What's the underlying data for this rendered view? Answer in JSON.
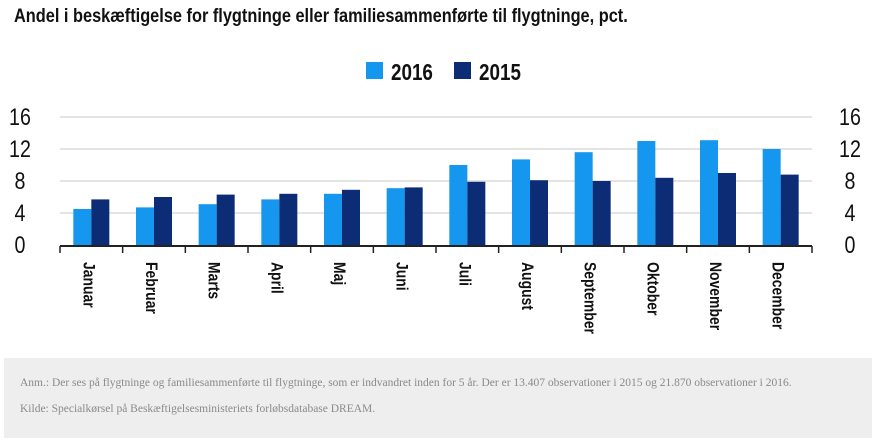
{
  "title": "Andel i beskæftigelse for flygtninge eller familiesammenførte til flygtninge, pct.",
  "colors": {
    "series2016": "#1596ef",
    "series2015": "#0c2c75"
  },
  "chart_data": {
    "type": "bar",
    "title": "",
    "xlabel": "",
    "ylabel": "",
    "ylim": [
      0,
      16
    ],
    "yticks": [
      "0",
      "4",
      "8",
      "12",
      "16"
    ],
    "grid": true,
    "legend_position": "top-center",
    "categories": [
      "Januar",
      "Februar",
      "Marts",
      "April",
      "Maj",
      "Juni",
      "Juli",
      "August",
      "September",
      "Oktober",
      "November",
      "December"
    ],
    "series": [
      {
        "name": "2016",
        "values": [
          4.5,
          4.7,
          5.1,
          5.7,
          6.4,
          7.1,
          10.0,
          10.7,
          11.6,
          13.0,
          13.1,
          12.0
        ]
      },
      {
        "name": "2015",
        "values": [
          5.7,
          6.0,
          6.3,
          6.4,
          6.9,
          7.2,
          7.9,
          8.1,
          8.0,
          8.4,
          9.0,
          8.8
        ]
      }
    ]
  },
  "note": {
    "line1": "Anm.: Der ses på flygtninge og familiesammenførte til flygtninge, som er indvandret inden for 5 år. Der er 13.407 observationer i 2015 og 21.870 observationer i 2016.",
    "line2": "Kilde: Specialkørsel på Beskæftigelsesministeriets forløbsdatabase DREAM."
  }
}
